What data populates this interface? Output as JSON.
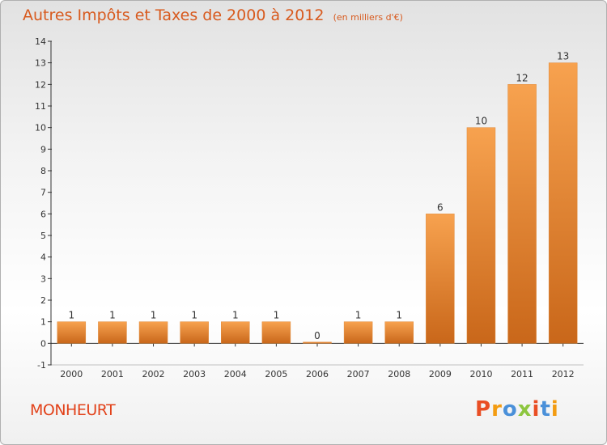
{
  "header": {
    "title": "Autres Impôts et Taxes de 2000 à 2012",
    "unit_note": "(en milliers d'€)"
  },
  "footer": {
    "commune": "MONHEURT",
    "logo_text": "Proxiti",
    "logo_letters": [
      {
        "char": "P",
        "color": "#e94e24"
      },
      {
        "char": "r",
        "color": "#f39c12"
      },
      {
        "char": "o",
        "color": "#4a90d9"
      },
      {
        "char": "x",
        "color": "#8dc63f"
      },
      {
        "char": "i",
        "color": "#e94e24"
      },
      {
        "char": "t",
        "color": "#4a90d9"
      },
      {
        "char": "i",
        "color": "#f39c12"
      }
    ]
  },
  "colors": {
    "title": "#d85a1e",
    "commune": "#e2421a",
    "bar_light": "#f7a24f",
    "bar_dark": "#c9671a",
    "axis": "#333333"
  },
  "chart_data": {
    "type": "bar",
    "title": "Autres Impôts et Taxes de 2000 à 2012",
    "subtitle": "(en milliers d'€)",
    "categories": [
      "2000",
      "2001",
      "2002",
      "2003",
      "2004",
      "2005",
      "2006",
      "2007",
      "2008",
      "2009",
      "2010",
      "2011",
      "2012"
    ],
    "values": [
      1,
      1,
      1,
      1,
      1,
      1,
      0,
      1,
      1,
      6,
      10,
      12,
      13
    ],
    "value_labels": [
      "1",
      "1",
      "1",
      "1",
      "1",
      "1",
      "0",
      "1",
      "1",
      "6",
      "10",
      "12",
      "13"
    ],
    "xlabel": "",
    "ylabel": "",
    "ylim": [
      -1,
      14
    ],
    "yticks": [
      -1,
      0,
      1,
      2,
      3,
      4,
      5,
      6,
      7,
      8,
      9,
      10,
      11,
      12,
      13,
      14
    ],
    "grid": false,
    "legend": "none"
  }
}
